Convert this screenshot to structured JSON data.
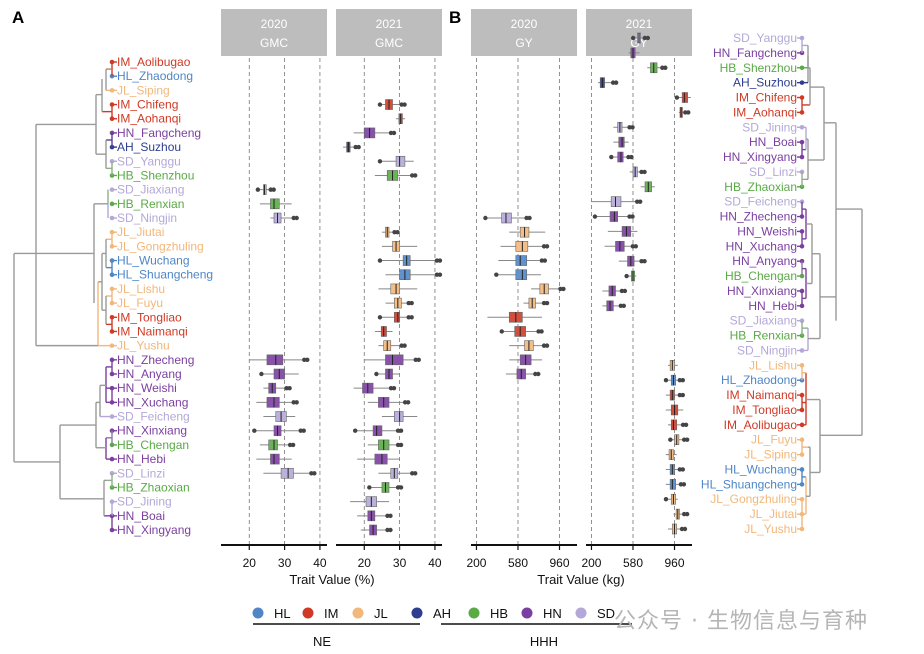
{
  "panels": {
    "a": "A",
    "b": "B"
  },
  "colors": {
    "HL": "#4f86c6",
    "IM": "#cf3a26",
    "JL": "#f2b77a",
    "AH": "#2e3d8f",
    "HB": "#5aaa46",
    "HN": "#7b3fa0",
    "SD": "#b3a8d8"
  },
  "legend": {
    "items": [
      {
        "key": "HL",
        "label": "HL"
      },
      {
        "key": "IM",
        "label": "IM"
      },
      {
        "key": "JL",
        "label": "JL"
      },
      {
        "key": "AH",
        "label": "AH"
      },
      {
        "key": "HB",
        "label": "HB"
      },
      {
        "key": "HN",
        "label": "HN"
      },
      {
        "key": "SD",
        "label": "SD"
      }
    ],
    "group_ne": "NE",
    "group_hhh": "HHH"
  },
  "watermark": "公众号 · 生物信息与育种",
  "chart_data": [
    {
      "type": "boxplot",
      "title": "2020 GMC",
      "strip_lines": [
        "2020",
        "GMC"
      ],
      "xlabel": "Trait Value (%)",
      "xlim": [
        12,
        42
      ],
      "ticks": [
        20,
        30,
        40
      ],
      "gridlines": [
        20,
        30,
        40
      ],
      "rows": "left",
      "boxes": {
        "Jiaxiang": [
          23,
          24,
          24.3,
          24.8,
          25.5
        ],
        "Renxian": [
          23,
          26,
          27,
          28.5,
          32
        ],
        "Ningjin": [
          26,
          27,
          28,
          29,
          32
        ],
        "Zhecheng": [
          20,
          25,
          27.5,
          29.5,
          35
        ],
        "Anyang": [
          24,
          27,
          28.5,
          30,
          34
        ],
        "Weishi": [
          24,
          25.5,
          26.5,
          27.5,
          30
        ],
        "Xuchang": [
          22,
          25,
          27,
          28.5,
          32
        ],
        "Feicheng": [
          24,
          27.5,
          29,
          30.5,
          33
        ],
        "Xinxiang": [
          22,
          27,
          28,
          29,
          34
        ],
        "Chengan": [
          23,
          25.5,
          27,
          28,
          31
        ],
        "Hebi": [
          22,
          26,
          27,
          28.5,
          32
        ],
        "Linzi": [
          24,
          29,
          31,
          32.5,
          37
        ]
      }
    },
    {
      "type": "boxplot",
      "title": "2021 GMC",
      "strip_lines": [
        "2021",
        "GMC"
      ],
      "xlabel": "Trait Value (%)",
      "xlim": [
        12,
        42
      ],
      "ticks": [
        20,
        30,
        40
      ],
      "gridlines": [
        20,
        30,
        40
      ],
      "rows": "left",
      "boxes": {
        "Chifeng": [
          25,
          26,
          27,
          28,
          30
        ],
        "Aohanqi": [
          29,
          29.8,
          30.3,
          30.8,
          31.5
        ],
        "Fangcheng": [
          17,
          20,
          21.5,
          23,
          27
        ],
        "Suzhou": [
          14,
          15,
          15.5,
          16,
          17
        ],
        "Yanggu": [
          25,
          29,
          30,
          31.5,
          34
        ],
        "Shenzhou": [
          23,
          26.5,
          28,
          29.5,
          33
        ],
        "Jiutai": [
          25,
          26,
          26.5,
          27,
          28
        ],
        "Gongzhuling": [
          25,
          28,
          29,
          30,
          35
        ],
        "Wuchang": [
          25,
          31,
          32,
          33,
          40
        ],
        "Shuangcheng": [
          26,
          30,
          31.5,
          33,
          40
        ],
        "Lishu": [
          24,
          27.5,
          29,
          30,
          35
        ],
        "Fuyu": [
          26,
          28.5,
          29.5,
          30.5,
          32
        ],
        "Tongliao": [
          25,
          28.5,
          29.5,
          30,
          32
        ],
        "Naimanqi": [
          23,
          24.8,
          25.5,
          26.3,
          28
        ],
        "Yushu": [
          24,
          25.5,
          26.5,
          27.5,
          30
        ],
        "Zhecheng": [
          20,
          26,
          28,
          31,
          34
        ],
        "Anyang": [
          24,
          26,
          27,
          28,
          30
        ],
        "Weishi": [
          17,
          19.5,
          21,
          22.5,
          27
        ],
        "Xuchang": [
          21,
          24,
          25.5,
          27,
          31
        ],
        "Feicheng": [
          25,
          28.5,
          30,
          31,
          35
        ],
        "Xinxiang": [
          18,
          22.5,
          23.5,
          25,
          29
        ],
        "Chengan": [
          21,
          24,
          25.5,
          27,
          29
        ],
        "Hebi": [
          18,
          23,
          25,
          26.5,
          30
        ],
        "Linzi": [
          24,
          27.5,
          28.5,
          29.5,
          33
        ],
        "Zhaoxian": [
          22,
          25,
          26,
          27,
          29
        ],
        "Jining": [
          16,
          20.5,
          22,
          23.5,
          27
        ],
        "Boai": [
          18,
          21,
          22,
          23,
          26
        ],
        "Xingyang": [
          19,
          21.5,
          22.5,
          23.5,
          26
        ]
      }
    },
    {
      "type": "boxplot",
      "title": "2020 GY",
      "strip_lines": [
        "2020",
        "GY"
      ],
      "xlabel": "Trait Value (kg)",
      "xlim": [
        150,
        1120
      ],
      "ticks": [
        200,
        580,
        960
      ],
      "gridlines": [
        200,
        580,
        960
      ],
      "rows": "left",
      "boxes": {
        "Ningjin": [
          300,
          430,
          470,
          520,
          640
        ],
        "Jiutai": [
          500,
          600,
          640,
          680,
          830
        ],
        "Gongzhuling": [
          420,
          560,
          620,
          670,
          800
        ],
        "Wuchang": [
          400,
          560,
          600,
          660,
          780
        ],
        "Shuangcheng": [
          400,
          560,
          620,
          660,
          790
        ],
        "Lishu": [
          700,
          780,
          820,
          860,
          950
        ],
        "Fuyu": [
          630,
          680,
          710,
          740,
          800
        ],
        "Tongliao": [
          300,
          500,
          560,
          620,
          800
        ],
        "Naimanqi": [
          450,
          550,
          600,
          650,
          750
        ],
        "Yushu": [
          500,
          640,
          680,
          720,
          800
        ],
        "Zhecheng": [
          500,
          600,
          650,
          700,
          800
        ],
        "Anyang": [
          470,
          570,
          610,
          650,
          720
        ]
      }
    },
    {
      "type": "boxplot",
      "title": "2021 GY",
      "strip_lines": [
        "2021",
        "GY"
      ],
      "xlabel": "Trait Value (kg)",
      "xlim": [
        150,
        1120
      ],
      "ticks": [
        200,
        580,
        960
      ],
      "gridlines": [
        200,
        580,
        960
      ],
      "rows": "right",
      "boxes": {
        "Yanggu": [
          600,
          620,
          635,
          650,
          670
        ],
        "Fangcheng": [
          540,
          560,
          580,
          600,
          640
        ],
        "Shenzhou": [
          710,
          740,
          770,
          800,
          830
        ],
        "Suzhou": [
          260,
          280,
          300,
          320,
          380
        ],
        "Chifeng": [
          1000,
          1030,
          1050,
          1080,
          1110
        ],
        "Aohanqi": [
          1000,
          1010,
          1020,
          1030,
          1040
        ],
        "Jining": [
          400,
          440,
          460,
          480,
          530
        ],
        "Boai": [
          400,
          450,
          480,
          500,
          540
        ],
        "Xingyang": [
          400,
          440,
          470,
          490,
          520
        ],
        "Linzi": [
          550,
          580,
          600,
          620,
          640
        ],
        "Zhaoxian": [
          650,
          690,
          720,
          750,
          780
        ],
        "Feicheng": [
          200,
          380,
          420,
          470,
          600
        ],
        "Zhecheng": [
          250,
          370,
          410,
          440,
          530
        ],
        "Weishi": [
          350,
          480,
          520,
          560,
          620
        ],
        "Xuchang": [
          320,
          420,
          460,
          500,
          560
        ],
        "Anyang": [
          450,
          530,
          560,
          590,
          640
        ],
        "Chengan": [
          540,
          565,
          580,
          595,
          610
        ],
        "Xinxiang": [
          300,
          360,
          390,
          420,
          460
        ],
        "Hebi": [
          300,
          340,
          370,
          400,
          450
        ],
        "Lishu": [
          900,
          920,
          940,
          960,
          990
        ],
        "Zhaodong": [
          900,
          930,
          950,
          970,
          990
        ],
        "Naimanqi": [
          880,
          920,
          940,
          960,
          990
        ],
        "Tongliao": [
          880,
          930,
          960,
          990,
          1040
        ],
        "Aolibugao": [
          900,
          930,
          950,
          980,
          1020
        ],
        "Fuyu": [
          940,
          960,
          980,
          1000,
          1030
        ],
        "Siping": [
          880,
          910,
          930,
          950,
          980
        ],
        "Wuchang": [
          880,
          920,
          940,
          960,
          990
        ],
        "Shuangcheng": [
          880,
          920,
          940,
          970,
          1000
        ],
        "Gongzhuling": [
          900,
          930,
          950,
          970,
          990
        ],
        "Jiutai": [
          950,
          975,
          990,
          1005,
          1030
        ],
        "Yushu": [
          900,
          940,
          960,
          980,
          1010
        ]
      }
    }
  ],
  "tree_left": {
    "order": [
      [
        "IM",
        "Aolibugao"
      ],
      [
        "HL",
        "Zhaodong"
      ],
      [
        "JL",
        "Siping"
      ],
      [
        "IM",
        "Chifeng"
      ],
      [
        "IM",
        "Aohanqi"
      ],
      [
        "HN",
        "Fangcheng"
      ],
      [
        "AH",
        "Suzhou"
      ],
      [
        "SD",
        "Yanggu"
      ],
      [
        "HB",
        "Shenzhou"
      ],
      [
        "SD",
        "Jiaxiang"
      ],
      [
        "HB",
        "Renxian"
      ],
      [
        "SD",
        "Ningjin"
      ],
      [
        "JL",
        "Jiutai"
      ],
      [
        "JL",
        "Gongzhuling"
      ],
      [
        "HL",
        "Wuchang"
      ],
      [
        "HL",
        "Shuangcheng"
      ],
      [
        "JL",
        "Lishu"
      ],
      [
        "JL",
        "Fuyu"
      ],
      [
        "IM",
        "Tongliao"
      ],
      [
        "IM",
        "Naimanqi"
      ],
      [
        "JL",
        "Yushu"
      ],
      [
        "HN",
        "Zhecheng"
      ],
      [
        "HN",
        "Anyang"
      ],
      [
        "HN",
        "Weishi"
      ],
      [
        "HN",
        "Xuchang"
      ],
      [
        "SD",
        "Feicheng"
      ],
      [
        "HN",
        "Xinxiang"
      ],
      [
        "HB",
        "Chengan"
      ],
      [
        "HN",
        "Hebi"
      ],
      [
        "SD",
        "Linzi"
      ],
      [
        "HB",
        "Zhaoxian"
      ],
      [
        "SD",
        "Jining"
      ],
      [
        "HN",
        "Boai"
      ],
      [
        "HN",
        "Xingyang"
      ]
    ]
  },
  "tree_right": {
    "order": [
      [
        "SD",
        "Yanggu"
      ],
      [
        "HN",
        "Fangcheng"
      ],
      [
        "HB",
        "Shenzhou"
      ],
      [
        "AH",
        "Suzhou"
      ],
      [
        "IM",
        "Chifeng"
      ],
      [
        "IM",
        "Aohanqi"
      ],
      [
        "SD",
        "Jining"
      ],
      [
        "HN",
        "Boai"
      ],
      [
        "HN",
        "Xingyang"
      ],
      [
        "SD",
        "Linzi"
      ],
      [
        "HB",
        "Zhaoxian"
      ],
      [
        "SD",
        "Feicheng"
      ],
      [
        "HN",
        "Zhecheng"
      ],
      [
        "HN",
        "Weishi"
      ],
      [
        "HN",
        "Xuchang"
      ],
      [
        "HN",
        "Anyang"
      ],
      [
        "HB",
        "Chengan"
      ],
      [
        "HN",
        "Xinxiang"
      ],
      [
        "HN",
        "Hebi"
      ],
      [
        "SD",
        "Jiaxiang"
      ],
      [
        "HB",
        "Renxian"
      ],
      [
        "SD",
        "Ningjin"
      ],
      [
        "JL",
        "Lishu"
      ],
      [
        "HL",
        "Zhaodong"
      ],
      [
        "IM",
        "Naimanqi"
      ],
      [
        "IM",
        "Tongliao"
      ],
      [
        "IM",
        "Aolibugao"
      ],
      [
        "JL",
        "Fuyu"
      ],
      [
        "JL",
        "Siping"
      ],
      [
        "HL",
        "Wuchang"
      ],
      [
        "HL",
        "Shuangcheng"
      ],
      [
        "JL",
        "Gongzhuling"
      ],
      [
        "JL",
        "Jiutai"
      ],
      [
        "JL",
        "Yushu"
      ]
    ]
  }
}
